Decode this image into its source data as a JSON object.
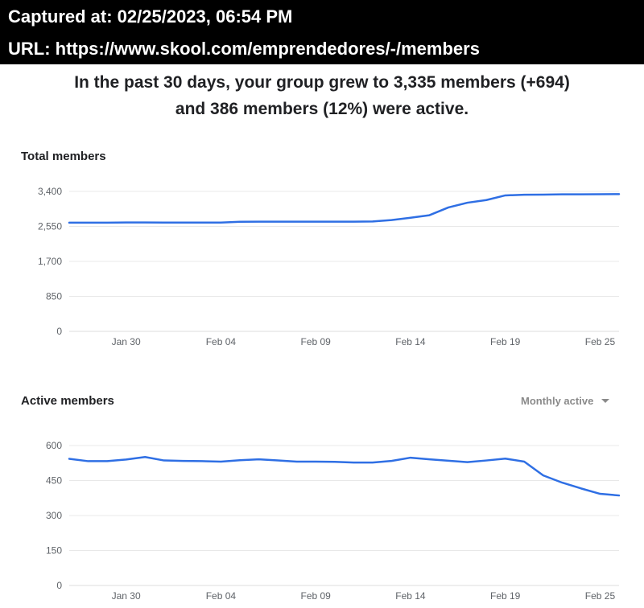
{
  "capture": {
    "captured_at": "Captured at: 02/25/2023, 06:54 PM",
    "url": "URL: https://www.skool.com/emprendedores/-/members"
  },
  "summary": {
    "line1": "In the past 30 days, your group grew to 3,335 members (+694)",
    "line2": "and 386 members (12%) were active."
  },
  "total_section": {
    "title": "Total members"
  },
  "active_section": {
    "title": "Active members",
    "dropdown_label": "Monthly active"
  },
  "colors": {
    "series": "#2f6fe4",
    "grid": "#e8e8e8",
    "axis": "#dcdcdc"
  },
  "chart_data": [
    {
      "type": "line",
      "title": "Total members",
      "ylim": [
        0,
        3400
      ],
      "yticks": [
        "0",
        "850",
        "1,700",
        "2,550",
        "3,400"
      ],
      "ytick_values": [
        0,
        850,
        1700,
        2550,
        3400
      ],
      "xticks": [
        "Jan 30",
        "Feb 04",
        "Feb 09",
        "Feb 14",
        "Feb 19",
        "Feb 25"
      ],
      "xtick_index": [
        3,
        8,
        13,
        18,
        23,
        28
      ],
      "x_count": 30,
      "series": [
        {
          "name": "Total members",
          "values": [
            2641,
            2641,
            2641,
            2645,
            2645,
            2643,
            2643,
            2643,
            2643,
            2663,
            2664,
            2664,
            2664,
            2665,
            2665,
            2665,
            2669,
            2703,
            2760,
            2822,
            3010,
            3125,
            3190,
            3303,
            3320,
            3323,
            3328,
            3330,
            3332,
            3335
          ]
        }
      ]
    },
    {
      "type": "line",
      "title": "Active members",
      "ylim": [
        0,
        600
      ],
      "yticks": [
        "0",
        "150",
        "300",
        "450",
        "600"
      ],
      "ytick_values": [
        0,
        150,
        300,
        450,
        600
      ],
      "xticks": [
        "Jan 30",
        "Feb 04",
        "Feb 09",
        "Feb 14",
        "Feb 19",
        "Feb 25"
      ],
      "xtick_index": [
        3,
        8,
        13,
        18,
        23,
        28
      ],
      "x_count": 30,
      "series": [
        {
          "name": "Monthly active",
          "values": [
            543,
            533,
            533,
            540,
            551,
            536,
            534,
            533,
            531,
            537,
            541,
            536,
            531,
            531,
            530,
            527,
            527,
            534,
            548,
            541,
            535,
            529,
            536,
            544,
            531,
            472,
            441,
            416,
            393,
            386
          ]
        }
      ]
    }
  ]
}
